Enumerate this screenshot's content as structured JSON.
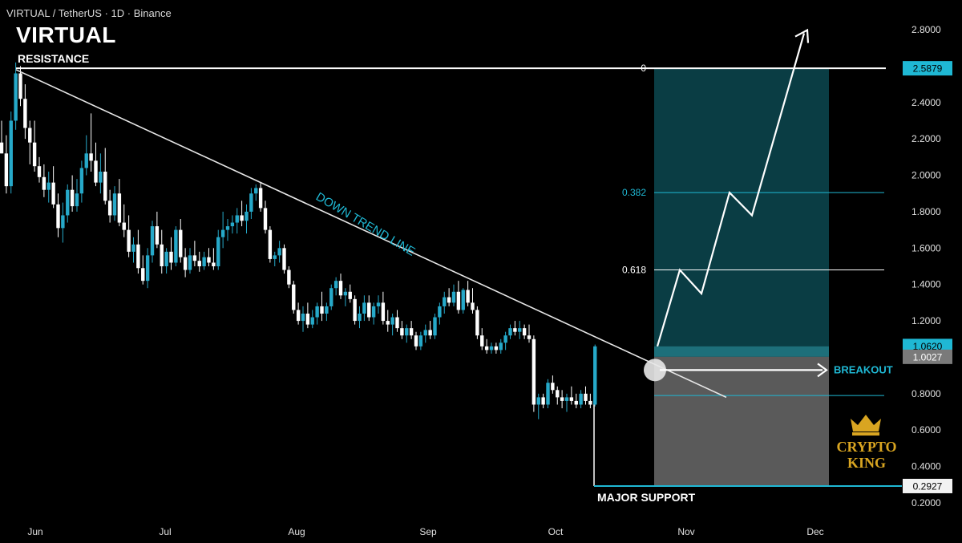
{
  "header": {
    "symbol_line": "VIRTUAL / TetherUS · 1D · Binance",
    "big_title": "VIRTUAL"
  },
  "colors": {
    "background": "#000000",
    "up_candle": "#26a9c9",
    "down_candle": "#ffffff",
    "accent": "#1fb8d4",
    "target_zone": "#0a3d44",
    "stop_zone": "#5a5a5a",
    "gold": "#d9a521"
  },
  "chart_data": {
    "type": "candlestick",
    "pair": "VIRTUAL / TetherUS",
    "timeframe": "1D",
    "exchange": "Binance",
    "x_labels": [
      "Jun",
      "Jul",
      "Aug",
      "Sep",
      "Oct",
      "Nov",
      "Dec"
    ],
    "y_ticks": [
      "2.8000",
      "2.4000",
      "2.2000",
      "2.0000",
      "1.8000",
      "1.6000",
      "1.4000",
      "1.2000",
      "1.0000",
      "0.8000",
      "0.6000",
      "0.4000",
      "0.2000"
    ],
    "ylim": [
      0.1,
      2.9
    ],
    "price_badges": [
      {
        "value": "2.5879",
        "style": "accent"
      },
      {
        "value": "1.0620",
        "style": "accent"
      },
      {
        "value": "1.0027",
        "style": "gray"
      },
      {
        "value": "0.2927",
        "style": "white"
      }
    ],
    "resistance": {
      "label": "RESISTANCE",
      "price": 2.5879
    },
    "support": {
      "label": "MAJOR SUPPORT",
      "price": 0.2927
    },
    "trendline": {
      "label": "DOWN TREND LINE",
      "start_price": 2.58,
      "end_price": 0.78
    },
    "fib_levels": [
      {
        "label": "0",
        "price": 2.5879
      },
      {
        "label": "0.382",
        "price": 1.905
      },
      {
        "label": "0.618",
        "price": 1.48
      }
    ],
    "entry_level": 1.0027,
    "stop_level": 0.79,
    "target_level": 2.5879,
    "breakout_label": "BREAKOUT",
    "projection_path_prices": [
      1.06,
      1.48,
      1.35,
      1.905,
      1.78,
      2.78
    ],
    "candles": [
      [
        2.18,
        2.3,
        2.12,
        2.12
      ],
      [
        2.12,
        2.22,
        1.9,
        1.94
      ],
      [
        1.94,
        2.35,
        1.9,
        2.3
      ],
      [
        2.3,
        2.62,
        2.25,
        2.56
      ],
      [
        2.56,
        2.6,
        2.38,
        2.42
      ],
      [
        2.42,
        2.5,
        2.2,
        2.26
      ],
      [
        2.26,
        2.3,
        2.06,
        2.18
      ],
      [
        2.18,
        2.3,
        2.02,
        2.05
      ],
      [
        2.05,
        2.1,
        1.96,
        1.99
      ],
      [
        1.99,
        2.06,
        1.88,
        1.92
      ],
      [
        1.92,
        2.02,
        1.85,
        1.96
      ],
      [
        1.96,
        2.05,
        1.82,
        1.84
      ],
      [
        1.84,
        1.9,
        1.66,
        1.71
      ],
      [
        1.71,
        1.85,
        1.63,
        1.78
      ],
      [
        1.78,
        1.95,
        1.74,
        1.92
      ],
      [
        1.92,
        2.0,
        1.8,
        1.83
      ],
      [
        1.83,
        1.98,
        1.8,
        1.9
      ],
      [
        1.9,
        2.08,
        1.85,
        2.04
      ],
      [
        2.04,
        2.22,
        2.0,
        2.12
      ],
      [
        2.12,
        2.34,
        2.02,
        2.08
      ],
      [
        2.08,
        2.18,
        1.94,
        1.96
      ],
      [
        1.96,
        2.12,
        1.9,
        2.02
      ],
      [
        2.02,
        2.15,
        1.84,
        1.86
      ],
      [
        1.86,
        1.92,
        1.74,
        1.78
      ],
      [
        1.78,
        1.94,
        1.75,
        1.9
      ],
      [
        1.9,
        1.98,
        1.72,
        1.74
      ],
      [
        1.74,
        1.84,
        1.66,
        1.7
      ],
      [
        1.7,
        1.78,
        1.55,
        1.58
      ],
      [
        1.58,
        1.66,
        1.52,
        1.62
      ],
      [
        1.62,
        1.7,
        1.46,
        1.49
      ],
      [
        1.49,
        1.56,
        1.4,
        1.42
      ],
      [
        1.42,
        1.6,
        1.38,
        1.56
      ],
      [
        1.56,
        1.75,
        1.52,
        1.72
      ],
      [
        1.72,
        1.8,
        1.6,
        1.62
      ],
      [
        1.62,
        1.7,
        1.46,
        1.5
      ],
      [
        1.5,
        1.6,
        1.46,
        1.58
      ],
      [
        1.58,
        1.66,
        1.48,
        1.52
      ],
      [
        1.52,
        1.72,
        1.5,
        1.7
      ],
      [
        1.7,
        1.76,
        1.52,
        1.55
      ],
      [
        1.55,
        1.6,
        1.44,
        1.48
      ],
      [
        1.48,
        1.6,
        1.46,
        1.56
      ],
      [
        1.56,
        1.64,
        1.5,
        1.53
      ],
      [
        1.53,
        1.58,
        1.47,
        1.5
      ],
      [
        1.5,
        1.58,
        1.48,
        1.55
      ],
      [
        1.55,
        1.6,
        1.5,
        1.52
      ],
      [
        1.52,
        1.6,
        1.48,
        1.5
      ],
      [
        1.5,
        1.7,
        1.48,
        1.66
      ],
      [
        1.66,
        1.8,
        1.6,
        1.7
      ],
      [
        1.7,
        1.76,
        1.64,
        1.72
      ],
      [
        1.72,
        1.78,
        1.68,
        1.74
      ],
      [
        1.74,
        1.82,
        1.68,
        1.78
      ],
      [
        1.78,
        1.86,
        1.72,
        1.75
      ],
      [
        1.75,
        1.84,
        1.68,
        1.8
      ],
      [
        1.8,
        1.93,
        1.76,
        1.9
      ],
      [
        1.9,
        1.95,
        1.86,
        1.93
      ],
      [
        1.93,
        1.96,
        1.8,
        1.82
      ],
      [
        1.82,
        1.86,
        1.68,
        1.7
      ],
      [
        1.7,
        1.72,
        1.52,
        1.54
      ],
      [
        1.54,
        1.58,
        1.5,
        1.56
      ],
      [
        1.56,
        1.64,
        1.52,
        1.6
      ],
      [
        1.6,
        1.62,
        1.46,
        1.48
      ],
      [
        1.48,
        1.5,
        1.38,
        1.4
      ],
      [
        1.4,
        1.42,
        1.24,
        1.26
      ],
      [
        1.26,
        1.3,
        1.18,
        1.2
      ],
      [
        1.2,
        1.28,
        1.14,
        1.24
      ],
      [
        1.24,
        1.3,
        1.16,
        1.18
      ],
      [
        1.18,
        1.26,
        1.16,
        1.22
      ],
      [
        1.22,
        1.3,
        1.18,
        1.28
      ],
      [
        1.28,
        1.36,
        1.2,
        1.24
      ],
      [
        1.24,
        1.3,
        1.2,
        1.28
      ],
      [
        1.28,
        1.4,
        1.26,
        1.38
      ],
      [
        1.38,
        1.44,
        1.34,
        1.42
      ],
      [
        1.42,
        1.46,
        1.32,
        1.34
      ],
      [
        1.34,
        1.38,
        1.28,
        1.36
      ],
      [
        1.36,
        1.4,
        1.3,
        1.32
      ],
      [
        1.32,
        1.34,
        1.18,
        1.2
      ],
      [
        1.2,
        1.28,
        1.16,
        1.24
      ],
      [
        1.24,
        1.34,
        1.2,
        1.3
      ],
      [
        1.3,
        1.34,
        1.2,
        1.22
      ],
      [
        1.22,
        1.3,
        1.18,
        1.28
      ],
      [
        1.28,
        1.34,
        1.24,
        1.3
      ],
      [
        1.3,
        1.36,
        1.18,
        1.2
      ],
      [
        1.2,
        1.26,
        1.14,
        1.18
      ],
      [
        1.18,
        1.24,
        1.12,
        1.22
      ],
      [
        1.22,
        1.26,
        1.14,
        1.16
      ],
      [
        1.16,
        1.2,
        1.1,
        1.12
      ],
      [
        1.12,
        1.18,
        1.08,
        1.16
      ],
      [
        1.16,
        1.2,
        1.1,
        1.12
      ],
      [
        1.12,
        1.14,
        1.04,
        1.06
      ],
      [
        1.06,
        1.14,
        1.04,
        1.12
      ],
      [
        1.12,
        1.18,
        1.08,
        1.15
      ],
      [
        1.15,
        1.2,
        1.1,
        1.12
      ],
      [
        1.12,
        1.24,
        1.1,
        1.22
      ],
      [
        1.22,
        1.3,
        1.18,
        1.28
      ],
      [
        1.28,
        1.36,
        1.24,
        1.33
      ],
      [
        1.33,
        1.38,
        1.28,
        1.3
      ],
      [
        1.3,
        1.4,
        1.28,
        1.36
      ],
      [
        1.36,
        1.42,
        1.24,
        1.26
      ],
      [
        1.26,
        1.38,
        1.24,
        1.37
      ],
      [
        1.37,
        1.42,
        1.28,
        1.3
      ],
      [
        1.3,
        1.38,
        1.24,
        1.26
      ],
      [
        1.26,
        1.28,
        1.1,
        1.12
      ],
      [
        1.12,
        1.16,
        1.04,
        1.06
      ],
      [
        1.06,
        1.1,
        1.02,
        1.04
      ],
      [
        1.04,
        1.08,
        1.02,
        1.06
      ],
      [
        1.06,
        1.08,
        1.02,
        1.04
      ],
      [
        1.04,
        1.1,
        1.02,
        1.08
      ],
      [
        1.08,
        1.14,
        1.04,
        1.12
      ],
      [
        1.12,
        1.18,
        1.1,
        1.16
      ],
      [
        1.16,
        1.2,
        1.12,
        1.14
      ],
      [
        1.14,
        1.2,
        1.1,
        1.16
      ],
      [
        1.16,
        1.18,
        1.1,
        1.12
      ],
      [
        1.12,
        1.18,
        1.08,
        1.1
      ],
      [
        1.1,
        1.12,
        0.7,
        0.74
      ],
      [
        0.74,
        0.8,
        0.66,
        0.78
      ],
      [
        0.78,
        0.8,
        0.72,
        0.74
      ],
      [
        0.74,
        0.88,
        0.72,
        0.86
      ],
      [
        0.86,
        0.9,
        0.8,
        0.82
      ],
      [
        0.82,
        0.84,
        0.74,
        0.78
      ],
      [
        0.78,
        0.82,
        0.72,
        0.76
      ],
      [
        0.76,
        0.8,
        0.7,
        0.78
      ],
      [
        0.78,
        0.84,
        0.74,
        0.76
      ],
      [
        0.76,
        0.8,
        0.72,
        0.74
      ],
      [
        0.74,
        0.82,
        0.72,
        0.8
      ],
      [
        0.8,
        0.84,
        0.74,
        0.76
      ],
      [
        0.76,
        0.8,
        0.72,
        0.74
      ],
      [
        0.74,
        1.07,
        0.73,
        1.06
      ]
    ]
  }
}
